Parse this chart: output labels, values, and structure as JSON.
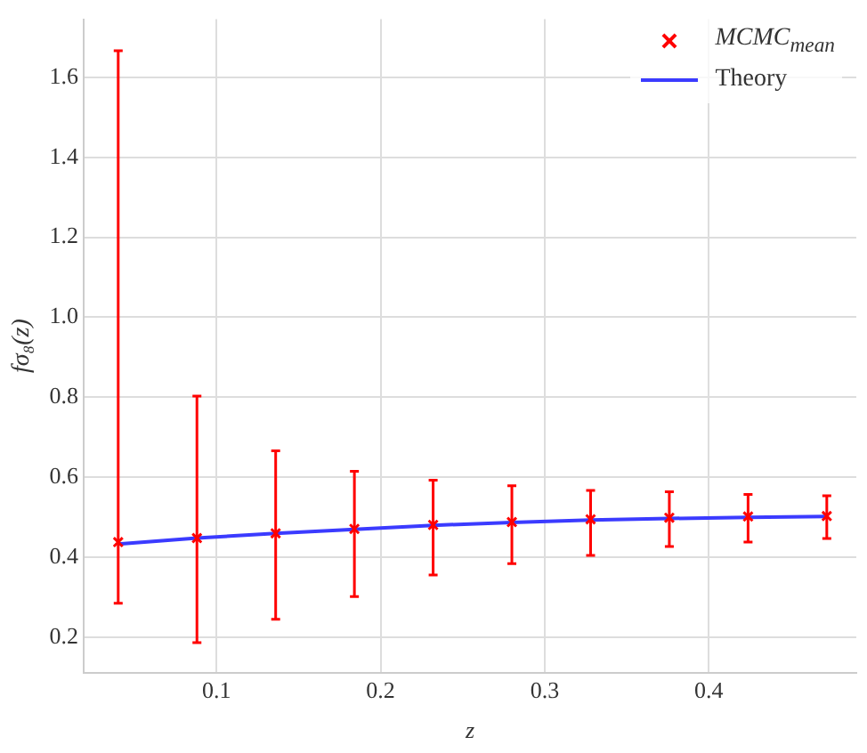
{
  "chart_data": {
    "type": "scatter",
    "xlabel": "z",
    "ylabel": "fσ₈(z)",
    "x": [
      0.04,
      0.088,
      0.136,
      0.184,
      0.232,
      0.28,
      0.328,
      0.376,
      0.424,
      0.472
    ],
    "series": [
      {
        "name": "MCMC$_{mean}$",
        "color": "#ff0000",
        "marker": "cross",
        "values": [
          0.438,
          0.448,
          0.46,
          0.471,
          0.481,
          0.488,
          0.495,
          0.499,
          0.502,
          0.503
        ],
        "errors": [
          [
            0.285,
            1.666
          ],
          [
            0.187,
            0.803
          ],
          [
            0.245,
            0.666
          ],
          [
            0.302,
            0.615
          ],
          [
            0.356,
            0.593
          ],
          [
            0.384,
            0.579
          ],
          [
            0.405,
            0.567
          ],
          [
            0.427,
            0.564
          ],
          [
            0.438,
            0.557
          ],
          [
            0.447,
            0.554
          ]
        ]
      },
      {
        "name": "Theory",
        "type": "line",
        "color": "#3b3bff",
        "line_style": "solid",
        "values": [
          0.433,
          0.448,
          0.46,
          0.47,
          0.48,
          0.487,
          0.493,
          0.497,
          0.5,
          0.502
        ]
      }
    ],
    "xlim": [
      0.019,
      0.49
    ],
    "xticks": [
      0.1,
      0.2,
      0.3,
      0.4
    ],
    "ylim": [
      0.112,
      1.745
    ],
    "yticks": [
      {
        "value": 0.2,
        "label": "0.2"
      },
      {
        "value": 0.4,
        "label": "0.4"
      },
      {
        "value": 0.6,
        "label": "0.6"
      },
      {
        "value": 0.8,
        "label": "0.8"
      },
      {
        "value": 1,
        "label": "1.0"
      },
      {
        "value": 1.2,
        "label": "1.2"
      },
      {
        "value": 1.4,
        "label": "1.4"
      },
      {
        "value": 1.6,
        "label": "1.6"
      }
    ],
    "grid": true,
    "legend": "top right"
  }
}
